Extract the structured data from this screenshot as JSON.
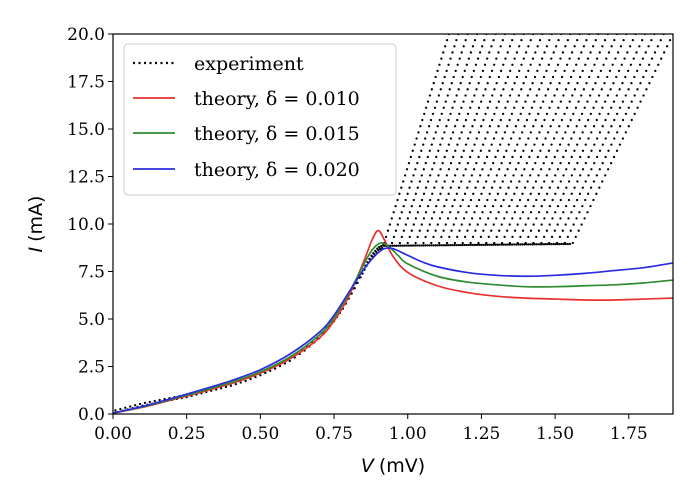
{
  "chart_data": {
    "type": "line",
    "title": "",
    "xlabel": {
      "symbol": "V",
      "unit": "(mV)"
    },
    "ylabel": {
      "symbol": "I",
      "unit": "(mA)"
    },
    "xlim": [
      0.0,
      1.9
    ],
    "ylim": [
      0.0,
      20.0
    ],
    "grid": false,
    "legend_position": "top-left",
    "x_ticks": [
      "0.00",
      "0.25",
      "0.50",
      "0.75",
      "1.00",
      "1.25",
      "1.50",
      "1.75"
    ],
    "x_tick_values": [
      0.0,
      0.25,
      0.5,
      0.75,
      1.0,
      1.25,
      1.5,
      1.75
    ],
    "y_ticks": [
      "0.0",
      "2.5",
      "5.0",
      "7.5",
      "10.0",
      "12.5",
      "15.0",
      "17.5",
      "20.0"
    ],
    "y_tick_values": [
      0.0,
      2.5,
      5.0,
      7.5,
      10.0,
      12.5,
      15.0,
      17.5,
      20.0
    ],
    "legend": [
      {
        "label": "experiment",
        "color": "#000000",
        "style": "dotted"
      },
      {
        "label": "theory, δ = 0.010",
        "color": "#e8312f",
        "style": "solid"
      },
      {
        "label": "theory, δ = 0.015",
        "color": "#2e8b2e",
        "style": "solid"
      },
      {
        "label": "theory, δ = 0.020",
        "color": "#2b2bdc",
        "style": "solid"
      }
    ],
    "series": [
      {
        "name": "theory, δ = 0.010",
        "color": "#e8312f",
        "x": [
          0.0,
          0.1,
          0.2,
          0.3,
          0.4,
          0.5,
          0.6,
          0.7,
          0.75,
          0.8,
          0.85,
          0.88,
          0.9,
          0.92,
          0.95,
          1.0,
          1.1,
          1.2,
          1.3,
          1.4,
          1.5,
          1.6,
          1.7,
          1.8,
          1.9
        ],
        "y": [
          0.05,
          0.35,
          0.75,
          1.15,
          1.6,
          2.15,
          2.9,
          4.0,
          4.9,
          6.2,
          8.0,
          9.2,
          9.65,
          9.2,
          8.3,
          7.45,
          6.75,
          6.4,
          6.2,
          6.1,
          6.05,
          6.0,
          6.0,
          6.05,
          6.1
        ]
      },
      {
        "name": "theory, δ = 0.015",
        "color": "#2e8b2e",
        "x": [
          0.0,
          0.1,
          0.2,
          0.3,
          0.4,
          0.5,
          0.6,
          0.7,
          0.75,
          0.8,
          0.85,
          0.88,
          0.91,
          0.94,
          0.97,
          1.0,
          1.1,
          1.2,
          1.3,
          1.4,
          1.5,
          1.6,
          1.7,
          1.8,
          1.9
        ],
        "y": [
          0.05,
          0.37,
          0.78,
          1.2,
          1.66,
          2.22,
          3.0,
          4.15,
          5.05,
          6.35,
          7.85,
          8.65,
          9.0,
          8.75,
          8.3,
          7.9,
          7.25,
          6.95,
          6.8,
          6.7,
          6.7,
          6.75,
          6.8,
          6.9,
          7.05
        ]
      },
      {
        "name": "theory, δ = 0.020",
        "color": "#2b2bdc",
        "x": [
          0.0,
          0.1,
          0.2,
          0.3,
          0.4,
          0.5,
          0.6,
          0.7,
          0.75,
          0.8,
          0.85,
          0.89,
          0.92,
          0.95,
          1.0,
          1.05,
          1.1,
          1.2,
          1.3,
          1.4,
          1.5,
          1.6,
          1.7,
          1.8,
          1.9
        ],
        "y": [
          0.05,
          0.4,
          0.82,
          1.27,
          1.75,
          2.33,
          3.15,
          4.3,
          5.2,
          6.4,
          7.6,
          8.35,
          8.7,
          8.7,
          8.35,
          8.0,
          7.75,
          7.45,
          7.3,
          7.25,
          7.3,
          7.4,
          7.55,
          7.7,
          7.95
        ]
      }
    ],
    "experiment": {
      "name": "experiment",
      "color": "#000000",
      "marker": "dot",
      "main_branch": {
        "x": [
          0.0,
          0.05,
          0.1,
          0.15,
          0.2,
          0.25,
          0.3,
          0.35,
          0.4,
          0.45,
          0.5,
          0.55,
          0.6,
          0.65,
          0.7,
          0.75,
          0.78,
          0.81,
          0.84,
          0.86,
          0.88,
          0.9,
          0.92
        ],
        "y": [
          0.1,
          0.3,
          0.5,
          0.65,
          0.8,
          0.95,
          1.15,
          1.35,
          1.55,
          1.8,
          2.1,
          2.45,
          2.85,
          3.4,
          4.05,
          4.95,
          5.6,
          6.4,
          7.25,
          7.85,
          8.35,
          8.7,
          8.85
        ]
      },
      "plateau": {
        "x_start": 0.92,
        "x_end": 1.55,
        "y_start": 8.85,
        "y_end": 8.95
      },
      "switching_branches": {
        "count": 25,
        "base_y": 9.0,
        "top_y": 20.0,
        "x_start_range": [
          0.92,
          1.56
        ],
        "x_end_range": [
          1.14,
          1.9
        ],
        "ratio_range": [
          0.01,
          0.36
        ]
      }
    }
  }
}
